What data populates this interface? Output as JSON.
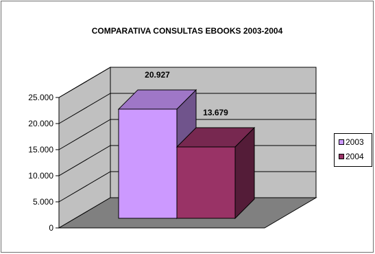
{
  "chart_data": {
    "type": "bar",
    "title": "COMPARATIVA CONSULTAS EBOOKS 2003-2004",
    "categories": [
      ""
    ],
    "series": [
      {
        "name": "2003",
        "values": [
          20927
        ],
        "label": "20.927",
        "color": "#cc99ff"
      },
      {
        "name": "2004",
        "values": [
          13679
        ],
        "label": "13.679",
        "color": "#993366"
      }
    ],
    "y_ticks": [
      {
        "value": 0,
        "label": "0"
      },
      {
        "value": 5000,
        "label": "5.000"
      },
      {
        "value": 10000,
        "label": "10.000"
      },
      {
        "value": 15000,
        "label": "15.000"
      },
      {
        "value": 20000,
        "label": "20.000"
      },
      {
        "value": 25000,
        "label": "25.000"
      }
    ],
    "ylim": [
      0,
      25000
    ],
    "xlabel": "",
    "ylabel": "",
    "grid": true,
    "three_d": true,
    "legend_position": "right",
    "colors": {
      "wall": "#c0c0c0",
      "floor": "#808080",
      "gridline": "#000000"
    }
  }
}
